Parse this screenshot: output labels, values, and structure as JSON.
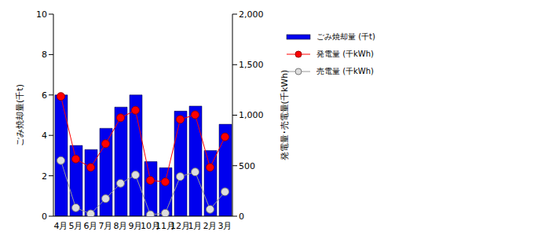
{
  "chart_data": {
    "type": "bar",
    "categories": [
      "4月",
      "5月",
      "6月",
      "7月",
      "8月",
      "9月",
      "10月",
      "11月",
      "12月",
      "1月",
      "2月",
      "3月"
    ],
    "ylabel": "ごみ焼却量(千t)",
    "y2label": "発電量･売電量(千kWh)",
    "ylim": [
      0,
      10
    ],
    "yticks": [
      0,
      2,
      4,
      6,
      8,
      10
    ],
    "y2lim": [
      0,
      2000
    ],
    "y2ticks": [
      0,
      500,
      {
        "value": 1000,
        "label": "1,000"
      },
      {
        "value": 1500,
        "label": "1,500"
      },
      {
        "value": 2000,
        "label": "2,000"
      }
    ],
    "grid": false,
    "legend": "upper right",
    "series": [
      {
        "name": "ごみ焼却量 (千t)",
        "type": "bar",
        "color": "#0000ee",
        "values": [
          6.0,
          3.5,
          3.3,
          4.35,
          5.4,
          6.0,
          2.7,
          2.4,
          5.2,
          5.45,
          3.25,
          4.55
        ]
      },
      {
        "name": "発電量 (千kWh)",
        "type": "line",
        "axis": "y2",
        "color": "#ff0000",
        "marker": "circle",
        "values": [
          1185,
          566,
          483,
          717,
          974,
          1049,
          355,
          340,
          958,
          1004,
          483,
          785
        ]
      },
      {
        "name": "売電量 (千kWh)",
        "type": "line",
        "axis": "y2",
        "color": "#999999",
        "marker": "circle",
        "values": [
          551,
          83,
          23,
          174,
          325,
          408,
          15,
          30,
          392,
          438,
          68,
          242
        ]
      }
    ]
  }
}
